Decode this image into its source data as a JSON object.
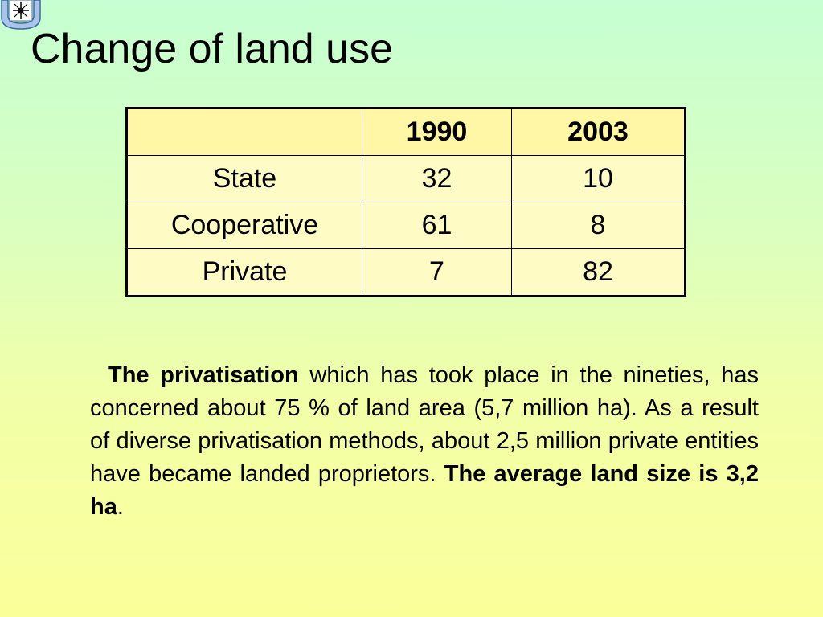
{
  "slide": {
    "logo": {
      "icon": "university-emblem-icon",
      "color": "#3b6aa6"
    },
    "title": "Change of land use",
    "table": {
      "columns": [
        "",
        "1990",
        "2003"
      ],
      "rows": [
        {
          "label": "State",
          "v1990": "32",
          "v2003": "10"
        },
        {
          "label": "Cooperative",
          "v1990": "61",
          "v2003": "8"
        },
        {
          "label": "Private",
          "v1990": "7",
          "v2003": "82"
        }
      ]
    },
    "paragraph": {
      "lead_bold": "The privatisation",
      "body": " which has took place in the nineties, has concerned about 75 % of land area (5,7 million ha). As a result of diverse privatisation methods, about 2,5 million private entities have became landed proprietors. ",
      "closing_bold": "The average land size is 3,2 ha",
      "closing_punct": "."
    }
  }
}
